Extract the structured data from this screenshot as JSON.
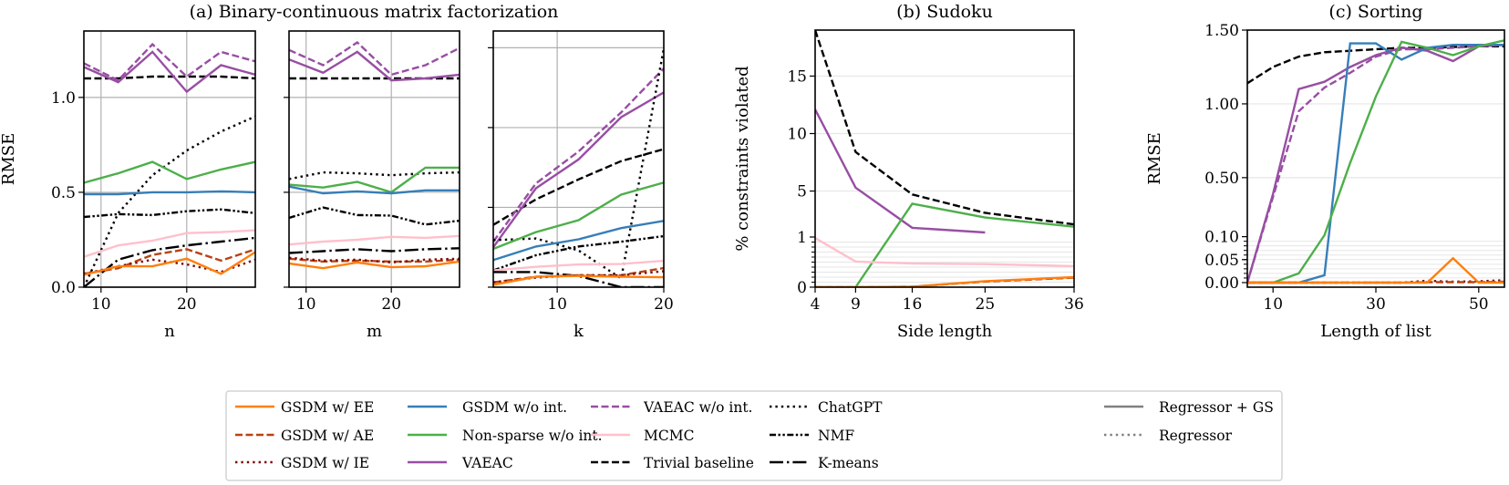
{
  "titles": {
    "a": "(a) Binary-continuous matrix factorization",
    "b": "(b) Sudoku",
    "c": "(c) Sorting"
  },
  "legend": {
    "placement": "bottom-center",
    "entries": [
      {
        "name": "GSDM w/ EE",
        "color": "#ff7f0e",
        "style": "solid"
      },
      {
        "name": "GSDM w/ AE",
        "color": "#b84311",
        "style": "dashed"
      },
      {
        "name": "GSDM w/ IE",
        "color": "#7a0a0a",
        "style": "dotted"
      },
      {
        "name": "GSDM w/o int.",
        "color": "#377eb8",
        "style": "solid"
      },
      {
        "name": "Non-sparse w/o int.",
        "color": "#4daf4a",
        "style": "solid"
      },
      {
        "name": "VAEAC",
        "color": "#984ea3",
        "style": "solid"
      },
      {
        "name": "VAEAC w/o int.",
        "color": "#984ea3",
        "style": "dashed"
      },
      {
        "name": "MCMC",
        "color": "#ffc0cb",
        "style": "solid"
      },
      {
        "name": "Trivial baseline",
        "color": "#000000",
        "style": "dashed"
      },
      {
        "name": "ChatGPT",
        "color": "#000000",
        "style": "dotted"
      },
      {
        "name": "NMF",
        "color": "#000000",
        "style": "dash-dot-dot"
      },
      {
        "name": "K-means",
        "color": "#000000",
        "style": "long-dash-dot"
      },
      {
        "name": "Regressor + GS",
        "color": "#808080",
        "style": "solid"
      },
      {
        "name": "Regressor",
        "color": "#808080",
        "style": "dotted"
      }
    ]
  },
  "chart_data": [
    {
      "type": "line",
      "xlabel": "n",
      "ylabel": "RMSE",
      "xlim": [
        8,
        28
      ],
      "ylim": [
        0,
        1.35
      ],
      "yscale": "linear",
      "grid": true,
      "xticks": [
        10,
        20
      ],
      "xtick_labels": [
        "10",
        "20"
      ],
      "yticks": [
        0,
        0.5,
        1.0
      ],
      "ytick_labels": [
        "0.0",
        "0.5",
        "1.0"
      ],
      "x": [
        8,
        12,
        16,
        20,
        24,
        28
      ],
      "series": [
        {
          "name": "Trivial baseline",
          "values": [
            1.1,
            1.1,
            1.11,
            1.11,
            1.11,
            1.1
          ]
        },
        {
          "name": "VAEAC w/o int.",
          "values": [
            1.18,
            1.09,
            1.28,
            1.11,
            1.24,
            1.19
          ]
        },
        {
          "name": "VAEAC",
          "values": [
            1.16,
            1.08,
            1.24,
            1.03,
            1.17,
            1.12
          ]
        },
        {
          "name": "ChatGPT",
          "values": [
            0.0,
            0.39,
            0.59,
            0.72,
            0.82,
            0.9
          ]
        },
        {
          "name": "Non-sparse w/o int.",
          "values": [
            0.55,
            0.6,
            0.66,
            0.57,
            0.62,
            0.66
          ]
        },
        {
          "name": "GSDM w/o int.",
          "values": [
            0.49,
            0.49,
            0.5,
            0.5,
            0.505,
            0.5
          ]
        },
        {
          "name": "NMF",
          "values": [
            0.37,
            0.385,
            0.38,
            0.4,
            0.41,
            0.39
          ]
        },
        {
          "name": "MCMC",
          "values": [
            0.16,
            0.22,
            0.245,
            0.285,
            0.29,
            0.3
          ]
        },
        {
          "name": "K-means",
          "values": [
            0.0,
            0.145,
            0.195,
            0.22,
            0.24,
            0.26
          ]
        },
        {
          "name": "GSDM w/ AE",
          "values": [
            0.07,
            0.1,
            0.17,
            0.2,
            0.14,
            0.2
          ]
        },
        {
          "name": "GSDM w/ IE",
          "values": [
            0.07,
            0.11,
            0.145,
            0.12,
            0.08,
            0.145
          ]
        },
        {
          "name": "GSDM w/ EE",
          "values": [
            0.065,
            0.11,
            0.11,
            0.15,
            0.07,
            0.185
          ]
        }
      ]
    },
    {
      "type": "line",
      "xlabel": "m",
      "ylabel": "",
      "xlim": [
        8,
        28
      ],
      "ylim": [
        0,
        1.35
      ],
      "yscale": "linear",
      "grid": true,
      "xticks": [
        10,
        20
      ],
      "xtick_labels": [
        "10",
        "20"
      ],
      "yticks": [
        0,
        0.5,
        1.0
      ],
      "ytick_labels": [
        "",
        "",
        ""
      ],
      "x": [
        8,
        12,
        16,
        20,
        24,
        28
      ],
      "series": [
        {
          "name": "Trivial baseline",
          "values": [
            1.1,
            1.1,
            1.1,
            1.1,
            1.1,
            1.1
          ]
        },
        {
          "name": "VAEAC w/o int.",
          "values": [
            1.25,
            1.17,
            1.29,
            1.12,
            1.17,
            1.26
          ]
        },
        {
          "name": "VAEAC",
          "values": [
            1.2,
            1.13,
            1.24,
            1.09,
            1.1,
            1.12
          ]
        },
        {
          "name": "ChatGPT",
          "values": [
            0.57,
            0.605,
            0.6,
            0.59,
            0.6,
            0.605
          ]
        },
        {
          "name": "Non-sparse w/o int.",
          "values": [
            0.54,
            0.525,
            0.555,
            0.5,
            0.63,
            0.63
          ]
        },
        {
          "name": "GSDM w/o int.",
          "values": [
            0.53,
            0.495,
            0.505,
            0.495,
            0.51,
            0.51
          ]
        },
        {
          "name": "NMF",
          "values": [
            0.365,
            0.42,
            0.38,
            0.377,
            0.33,
            0.35
          ]
        },
        {
          "name": "MCMC",
          "values": [
            0.225,
            0.24,
            0.25,
            0.265,
            0.26,
            0.27
          ]
        },
        {
          "name": "K-means",
          "values": [
            0.18,
            0.19,
            0.2,
            0.19,
            0.2,
            0.205
          ]
        },
        {
          "name": "GSDM w/ AE",
          "values": [
            0.15,
            0.135,
            0.14,
            0.135,
            0.135,
            0.145
          ]
        },
        {
          "name": "GSDM w/ IE",
          "values": [
            0.155,
            0.14,
            0.145,
            0.13,
            0.145,
            0.15
          ]
        },
        {
          "name": "GSDM w/ EE",
          "values": [
            0.125,
            0.1,
            0.13,
            0.105,
            0.11,
            0.135
          ]
        }
      ]
    },
    {
      "type": "line",
      "xlabel": "k",
      "ylabel": "",
      "xlim": [
        4,
        20
      ],
      "ylim": [
        0,
        3.21
      ],
      "yscale": "linear",
      "grid": true,
      "xticks": [
        10,
        20
      ],
      "xtick_labels": [
        "10",
        "20"
      ],
      "yticks": [
        0,
        1,
        2,
        3
      ],
      "ytick_labels": [
        "",
        "",
        "",
        ""
      ],
      "x": [
        4,
        8,
        12,
        16,
        20
      ],
      "series": [
        {
          "name": "Trivial baseline",
          "values": [
            0.78,
            1.1,
            1.35,
            1.58,
            1.73
          ]
        },
        {
          "name": "VAEAC w/o int.",
          "values": [
            0.57,
            1.3,
            1.7,
            2.19,
            2.74
          ]
        },
        {
          "name": "VAEAC",
          "values": [
            0.5,
            1.24,
            1.6,
            2.13,
            2.44
          ]
        },
        {
          "name": "ChatGPT",
          "values": [
            0.59,
            0.61,
            0.46,
            0.11,
            2.99
          ]
        },
        {
          "name": "Non-sparse w/o int.",
          "values": [
            0.48,
            0.69,
            0.84,
            1.16,
            1.31
          ]
        },
        {
          "name": "GSDM w/o int.",
          "values": [
            0.34,
            0.51,
            0.6,
            0.74,
            0.83
          ]
        },
        {
          "name": "NMF",
          "values": [
            0.21,
            0.4,
            0.51,
            0.57,
            0.64
          ]
        },
        {
          "name": "MCMC",
          "values": [
            0.21,
            0.255,
            0.285,
            0.29,
            0.33
          ]
        },
        {
          "name": "K-means",
          "values": [
            0.19,
            0.19,
            0.14,
            0.0,
            0.0
          ]
        },
        {
          "name": "GSDM w/ AE",
          "values": [
            0.06,
            0.13,
            0.15,
            0.15,
            0.24
          ]
        },
        {
          "name": "GSDM w/ IE",
          "values": [
            0.06,
            0.12,
            0.15,
            0.15,
            0.2
          ]
        },
        {
          "name": "GSDM w/ EE",
          "values": [
            0.03,
            0.13,
            0.14,
            0.13,
            0.125
          ]
        }
      ]
    },
    {
      "type": "line",
      "xlabel": "Side length",
      "ylabel": "% constraints violated",
      "xlim": [
        4,
        36
      ],
      "ylim": [
        0,
        19
      ],
      "yscale": "symlog",
      "linthresh": 1,
      "grid": true,
      "xticks": [
        4,
        9,
        16,
        25,
        36
      ],
      "xtick_labels": [
        "4",
        "9",
        "16",
        "25",
        "36"
      ],
      "yticks": [
        0,
        1,
        5,
        10,
        15
      ],
      "ytick_labels": [
        "0",
        "1",
        "5",
        "10",
        "15"
      ],
      "x": [
        4,
        9,
        16,
        25,
        36
      ],
      "series": [
        {
          "name": "Trivial baseline",
          "values": [
            19.0,
            8.4,
            4.7,
            3.1,
            2.1
          ]
        },
        {
          "name": "VAEAC",
          "values": [
            12.1,
            5.3,
            1.8,
            1.4,
            null
          ]
        },
        {
          "name": "Non-sparse w/o int.",
          "values": [
            0.0,
            0.0,
            3.9,
            2.7,
            1.9
          ]
        },
        {
          "name": "MCMC",
          "values": [
            0.98,
            0.51,
            0.47,
            0.46,
            0.42
          ]
        },
        {
          "name": "GSDM w/ AE",
          "values": [
            0.0,
            0.0,
            0.01,
            0.11,
            0.19
          ]
        },
        {
          "name": "GSDM w/ EE",
          "values": [
            0.0,
            0.0,
            0.01,
            0.12,
            0.2
          ]
        }
      ]
    },
    {
      "type": "line",
      "xlabel": "Length of list",
      "ylabel": "RMSE",
      "xlim": [
        5,
        55
      ],
      "ylim": [
        -0.01,
        1.5
      ],
      "yscale": "symlog",
      "linthresh": 0.1,
      "grid": true,
      "xticks": [
        10,
        30,
        50
      ],
      "xtick_labels": [
        "10",
        "30",
        "50"
      ],
      "yticks": [
        0,
        0.05,
        0.1,
        0.5,
        1.0,
        1.5
      ],
      "ytick_labels": [
        "0.00",
        "0.05",
        "0.10",
        "0.50",
        "1.00",
        "1.50"
      ],
      "x": [
        5,
        10,
        15,
        20,
        25,
        30,
        35,
        40,
        45,
        50,
        55
      ],
      "series": [
        {
          "name": "Trivial baseline",
          "values": [
            1.14,
            1.25,
            1.32,
            1.35,
            1.36,
            1.37,
            1.38,
            1.38,
            1.385,
            1.39,
            1.39
          ]
        },
        {
          "name": "VAEAC w/o int.",
          "values": [
            0.0,
            0.37,
            0.95,
            1.11,
            1.21,
            1.32,
            1.37,
            1.37,
            1.38,
            1.39,
            1.4
          ]
        },
        {
          "name": "VAEAC",
          "values": [
            0.0,
            0.39,
            1.1,
            1.15,
            1.25,
            1.33,
            1.38,
            1.36,
            1.29,
            1.39,
            1.4
          ]
        },
        {
          "name": "GSDM w/o int.",
          "values": [
            0.0,
            0.0,
            0.0,
            0.016,
            1.41,
            1.41,
            1.3,
            1.38,
            1.4,
            1.4,
            1.4
          ]
        },
        {
          "name": "Non-sparse w/o int.",
          "values": [
            0.0,
            0.0,
            0.02,
            0.11,
            0.6,
            1.05,
            1.42,
            1.38,
            1.33,
            1.39,
            1.43
          ]
        },
        {
          "name": "GSDM w/ IE",
          "values": [
            0.0,
            0.0,
            0.0,
            0.0,
            0.0,
            0.0,
            0.0,
            0.004,
            0.002,
            0.003,
            0.005
          ]
        },
        {
          "name": "GSDM w/ AE",
          "values": [
            0.0,
            0.0,
            0.0,
            0.0,
            0.0,
            0.0,
            0.0,
            0.001,
            0.001,
            0.001,
            0.002
          ]
        },
        {
          "name": "GSDM w/ EE",
          "values": [
            0.0,
            0.0,
            0.0,
            0.0,
            0.0,
            0.0,
            0.0,
            0.0,
            0.053,
            0.0,
            0.0
          ]
        }
      ]
    }
  ]
}
